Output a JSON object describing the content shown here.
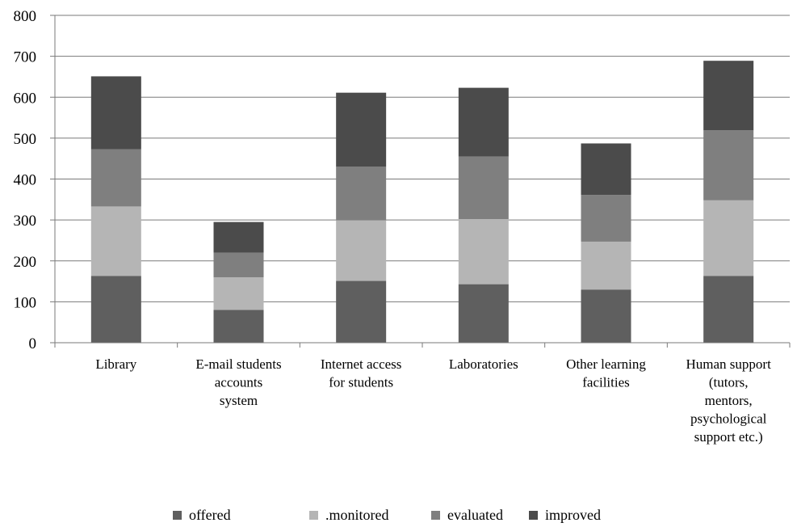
{
  "chart_data": {
    "type": "bar",
    "stacked": true,
    "categories": [
      "Library",
      "E-mail students accounts system",
      "Internet access for students",
      "Laboratories",
      "Other learning facilities",
      "Human support (tutors, mentors, psychological support etc.)"
    ],
    "category_lines": [
      [
        "Library"
      ],
      [
        "E-mail students",
        "accounts",
        "system"
      ],
      [
        "Internet access",
        "for students"
      ],
      [
        "Laboratories"
      ],
      [
        "Other learning",
        "facilities"
      ],
      [
        "Human support",
        "(tutors,",
        "mentors,",
        "psychological",
        "support etc.)"
      ]
    ],
    "series": [
      {
        "name": "offered",
        "color": "#5f5f5f",
        "values": [
          163,
          80,
          151,
          143,
          130,
          163
        ]
      },
      {
        "name": "monitored",
        "color": "#b5b5b5",
        "values": [
          170,
          80,
          148,
          159,
          117,
          185
        ]
      },
      {
        "name": "evaluated",
        "color": "#7f7f7f",
        "values": [
          140,
          60,
          131,
          153,
          114,
          171
        ]
      },
      {
        "name": "improved",
        "color": "#4b4b4b",
        "values": [
          178,
          75,
          181,
          168,
          126,
          170
        ]
      }
    ],
    "legend_labels": [
      "offered",
      ".monitored",
      "evaluated",
      "improved"
    ],
    "ylim": [
      0,
      800
    ],
    "yticks": [
      0,
      100,
      200,
      300,
      400,
      500,
      600,
      700,
      800
    ],
    "grid": true,
    "legend_position": "bottom"
  }
}
